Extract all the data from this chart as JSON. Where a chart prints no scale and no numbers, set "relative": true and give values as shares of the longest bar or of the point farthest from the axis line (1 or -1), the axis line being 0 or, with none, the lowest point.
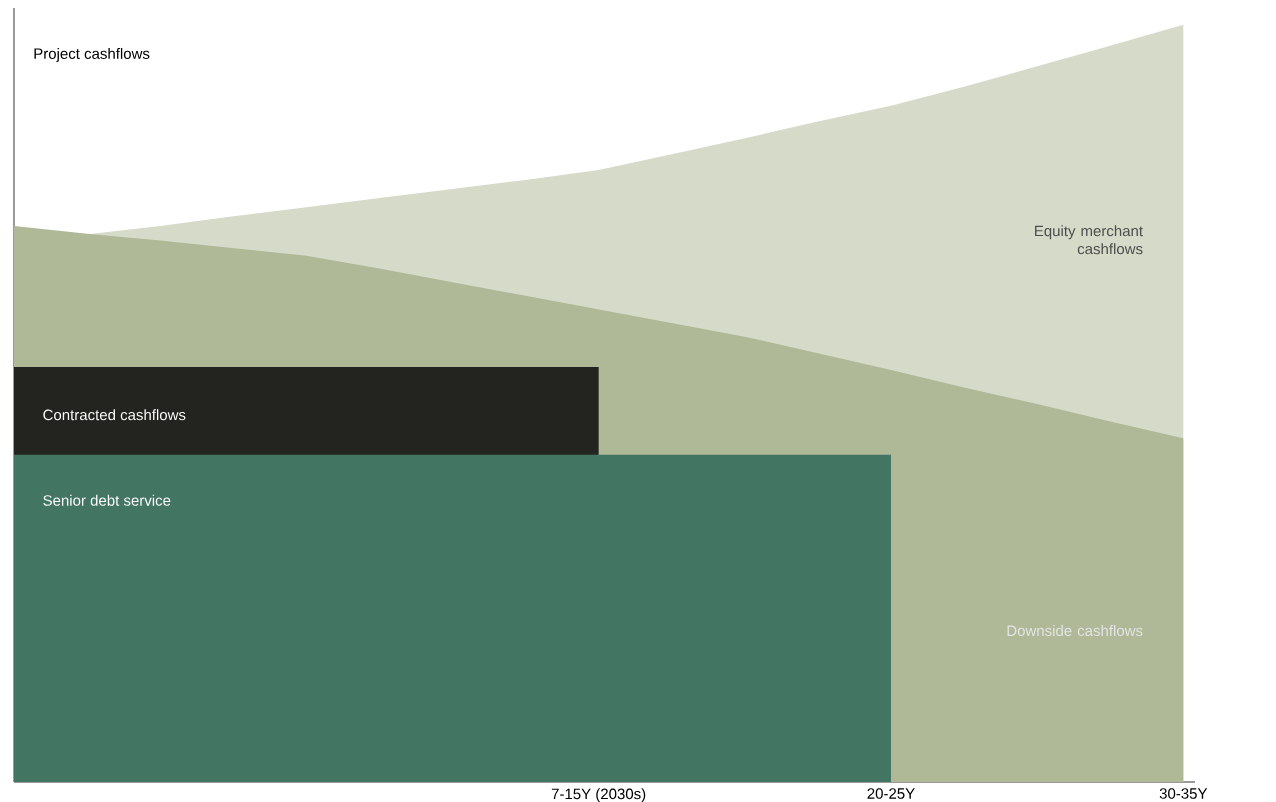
{
  "chart_data": {
    "type": "area",
    "relative": true,
    "ylabel": "Project cashflows",
    "tick_labels": "x",
    "categories": [
      null,
      null,
      null,
      null,
      null,
      null,
      null,
      null,
      "7-15Y (2030s)",
      null,
      null,
      null,
      "20-25Y",
      null,
      null,
      null,
      "30-35Y"
    ],
    "series": [
      {
        "name": "Equity merchant cashflows",
        "color": "#d6dbc9",
        "values": [
          0.712,
          null,
          0.734,
          0.747,
          0.759,
          0.771,
          0.783,
          0.795,
          0.808,
          0.829,
          0.85,
          0.872,
          0.893,
          0.918,
          0.945,
          0.972,
          1.0
        ]
      },
      {
        "name": "Downside cashflows",
        "color": "#afb897",
        "values": [
          0.734,
          0.724,
          0.715,
          0.705,
          0.695,
          0.678,
          0.66,
          0.642,
          0.624,
          0.606,
          0.588,
          0.566,
          0.544,
          0.521,
          0.499,
          0.476,
          0.454
        ]
      },
      {
        "name": "Contracted cashflows",
        "color": "#23241f",
        "values": [
          0.548,
          0.548,
          0.548,
          0.548,
          0.548,
          0.548,
          0.548,
          0.548,
          0.548,
          null,
          null,
          null,
          null,
          null,
          null,
          null,
          null
        ]
      },
      {
        "name": "Senior debt service",
        "color": "#437563",
        "values": [
          0.432,
          0.432,
          0.432,
          0.432,
          0.432,
          0.432,
          0.432,
          0.432,
          0.432,
          0.432,
          0.432,
          0.432,
          0.432,
          null,
          null,
          null,
          null
        ]
      }
    ]
  }
}
